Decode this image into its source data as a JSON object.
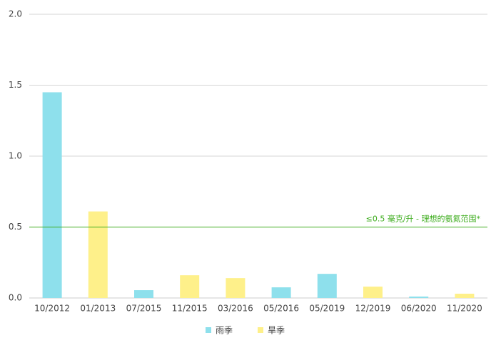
{
  "chart_data": {
    "type": "bar",
    "categories": [
      "10/2012",
      "01/2013",
      "07/2015",
      "11/2015",
      "03/2016",
      "05/2016",
      "05/2019",
      "12/2019",
      "06/2020",
      "11/2020"
    ],
    "series": [
      {
        "name": "雨季",
        "color": "#8ee0ec",
        "values": [
          1.45,
          null,
          0.055,
          null,
          null,
          0.075,
          0.17,
          null,
          0.01,
          null
        ]
      },
      {
        "name": "旱季",
        "color": "#fef08a",
        "values": [
          null,
          0.61,
          null,
          0.16,
          0.14,
          null,
          null,
          0.08,
          null,
          0.03
        ]
      }
    ],
    "ylim": [
      0,
      2
    ],
    "yticks": [
      {
        "value": 0,
        "label": "0.0"
      },
      0.5,
      {
        "value": 1,
        "label": "1.0"
      },
      1.5,
      {
        "value": 2,
        "label": "2.0"
      }
    ],
    "grid": true,
    "reference_line": {
      "value": 0.5,
      "label": "≤0.5 毫克/升 - 理想的氨氮范围*",
      "color": "#3cac1c"
    }
  }
}
